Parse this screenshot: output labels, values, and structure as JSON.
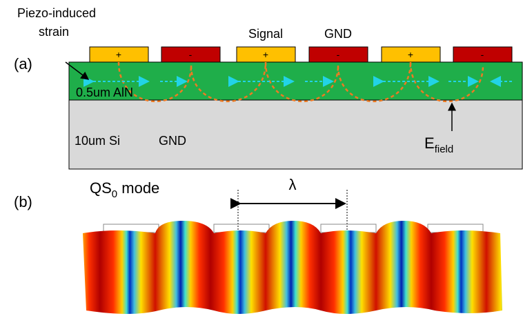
{
  "panel_a": {
    "label": "(a)",
    "strain_label": [
      "Piezo-induced",
      "strain"
    ],
    "signal": "Signal",
    "gnd_top": "GND",
    "electrodes": [
      "+",
      "-",
      "+",
      "-",
      "+",
      "-"
    ],
    "aln": "0.5um AlN",
    "si": "10um Si",
    "gnd": "GND",
    "efield": {
      "main": "E",
      "sub": "field"
    }
  },
  "panel_b": {
    "label": "(b)",
    "mode": {
      "main": "QS",
      "sub": "0",
      "rest": " mode"
    },
    "lambda": "λ"
  }
}
